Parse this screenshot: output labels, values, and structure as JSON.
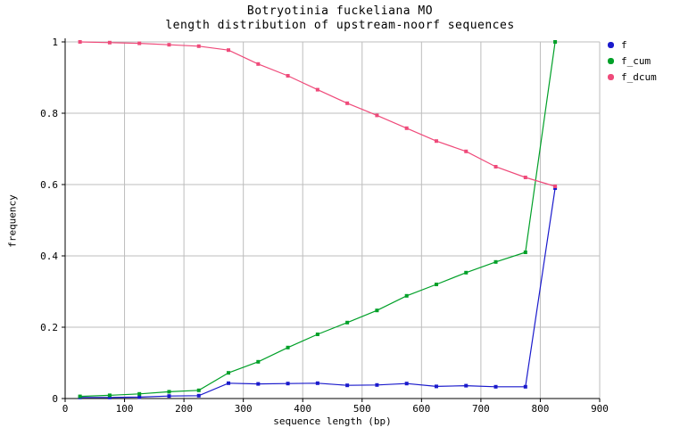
{
  "title": {
    "line1": "Botryotinia fuckeliana MO",
    "line2": "length distribution of upstream-noorf sequences"
  },
  "colors": {
    "background": "#ffffff",
    "grid": "#bdbdbd",
    "axis": "#000000",
    "text": "#000000",
    "series_f": "#1a1acc",
    "series_f_cum": "#00a028",
    "series_f_dcum": "#ef4a7a"
  },
  "chart_data": {
    "type": "line",
    "title": "Botryotinia fuckeliana MO",
    "subtitle": "length distribution of upstream-noorf sequences",
    "xlabel": "sequence length (bp)",
    "ylabel": "frequency",
    "xlim": [
      0,
      900
    ],
    "ylim": [
      0,
      1
    ],
    "grid": true,
    "legend_position": "outside-top-right",
    "x_tick_values": [
      0,
      100,
      200,
      300,
      400,
      500,
      600,
      700,
      800,
      900
    ],
    "x_tick_labels": [
      "0",
      "100",
      "200",
      "300",
      "400",
      "500",
      "600",
      "700",
      "800",
      "900"
    ],
    "y_tick_values": [
      0,
      0.2,
      0.4,
      0.6,
      0.8,
      1
    ],
    "y_tick_labels": [
      "0",
      "0.2",
      "0.4",
      "0.6",
      "0.8",
      "1"
    ],
    "x": [
      25,
      75,
      125,
      175,
      225,
      275,
      325,
      375,
      425,
      475,
      525,
      575,
      625,
      675,
      725,
      775,
      825
    ],
    "series": [
      {
        "name": "f",
        "color": "#1a1acc",
        "values": [
          0.003,
          0.003,
          0.004,
          0.007,
          0.008,
          0.043,
          0.041,
          0.042,
          0.043,
          0.037,
          0.038,
          0.042,
          0.034,
          0.036,
          0.033,
          0.033,
          0.59
        ]
      },
      {
        "name": "f_cum",
        "color": "#00a028",
        "values": [
          0.006,
          0.009,
          0.013,
          0.019,
          0.023,
          0.072,
          0.103,
          0.143,
          0.18,
          0.213,
          0.247,
          0.288,
          0.32,
          0.353,
          0.383,
          0.41,
          1.0
        ]
      },
      {
        "name": "f_dcum",
        "color": "#ef4a7a",
        "values": [
          1.0,
          0.998,
          0.996,
          0.992,
          0.988,
          0.977,
          0.938,
          0.905,
          0.866,
          0.828,
          0.794,
          0.758,
          0.722,
          0.693,
          0.65,
          0.62,
          0.595
        ]
      }
    ]
  }
}
